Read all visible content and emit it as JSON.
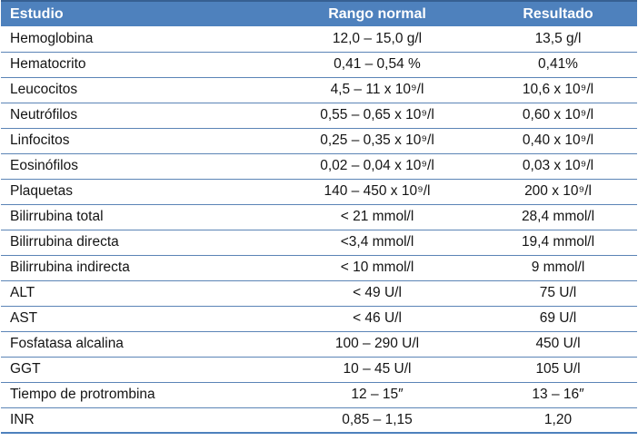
{
  "table": {
    "columns": [
      {
        "label": "Estudio"
      },
      {
        "label": "Rango normal"
      },
      {
        "label": "Resultado"
      }
    ],
    "rows": [
      {
        "estudio": "Hemoglobina",
        "rango": "12,0 – 15,0 g/l",
        "resultado": "13,5 g/l"
      },
      {
        "estudio": "Hematocrito",
        "rango": "0,41 – 0,54 %",
        "resultado": "0,41%"
      },
      {
        "estudio": "Leucocitos",
        "rango": "4,5 – 11 x 10⁹/l",
        "resultado": "10,6 x 10⁹/l"
      },
      {
        "estudio": "Neutrófilos",
        "rango": "0,55 – 0,65 x 10⁹/l",
        "resultado": "0,60 x 10⁹/l"
      },
      {
        "estudio": "Linfocitos",
        "rango": "0,25 – 0,35 x 10⁹/l",
        "resultado": "0,40 x 10⁹/l"
      },
      {
        "estudio": "Eosinófilos",
        "rango": "0,02 – 0,04 x 10⁹/l",
        "resultado": "0,03 x 10⁹/l"
      },
      {
        "estudio": "Plaquetas",
        "rango": "140 – 450 x 10⁹/l",
        "resultado": "200 x 10⁹/l"
      },
      {
        "estudio": "Bilirrubina total",
        "rango": "< 21 mmol/l",
        "resultado": "28,4 mmol/l"
      },
      {
        "estudio": "Bilirrubina directa",
        "rango": "<3,4 mmol/l",
        "resultado": "19,4 mmol/l"
      },
      {
        "estudio": "Bilirrubina indirecta",
        "rango": "< 10 mmol/l",
        "resultado": "9 mmol/l"
      },
      {
        "estudio": "ALT",
        "rango": "< 49 U/l",
        "resultado": "75 U/l"
      },
      {
        "estudio": "AST",
        "rango": "< 46 U/l",
        "resultado": "69 U/l"
      },
      {
        "estudio": "Fosfatasa alcalina",
        "rango": "100 – 290 U/l",
        "resultado": "450 U/l"
      },
      {
        "estudio": "GGT",
        "rango": "10 – 45 U/l",
        "resultado": "105 U/l"
      },
      {
        "estudio": "Tiempo de protrombina",
        "rango": "12 – 15″",
        "resultado": "13 – 16″"
      },
      {
        "estudio": "INR",
        "rango": "0,85 – 1,15",
        "resultado": "1,20"
      }
    ]
  },
  "colors": {
    "header_bg": "#4E81BD",
    "header_text": "#FFFFFF",
    "top_border": "#366092",
    "row_divider": "#5B84B6",
    "bottom_border": "#4E81BD",
    "body_text": "#141414"
  }
}
